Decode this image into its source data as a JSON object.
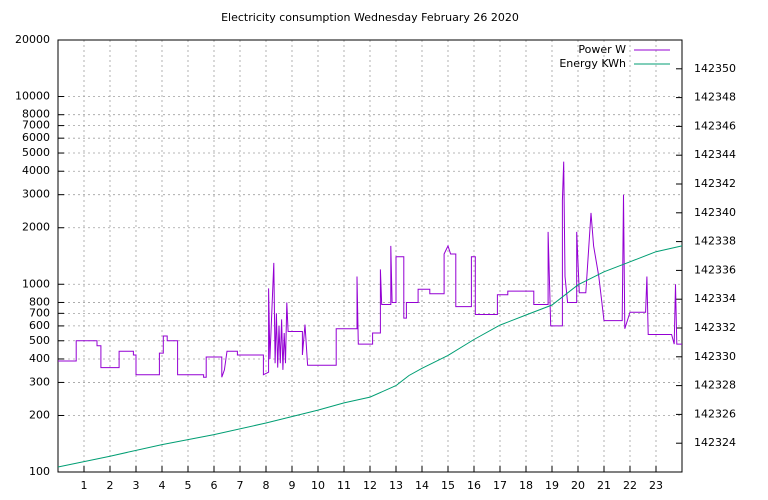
{
  "chart_data": {
    "type": "line",
    "title": "Electricity consumption Wednesday February 26 2020",
    "xlim": [
      0,
      24
    ],
    "xticks": [
      1,
      2,
      3,
      4,
      5,
      6,
      7,
      8,
      9,
      10,
      11,
      12,
      13,
      14,
      15,
      16,
      17,
      18,
      19,
      20,
      21,
      22,
      23
    ],
    "ylim": [
      100,
      20000
    ],
    "yscale": "log",
    "yticks": [
      100,
      200,
      300,
      400,
      500,
      600,
      700,
      800,
      1000,
      2000,
      3000,
      4000,
      5000,
      6000,
      7000,
      8000,
      10000,
      20000
    ],
    "y2lim": [
      142322,
      142352
    ],
    "y2ticks": [
      142324,
      142326,
      142328,
      142330,
      142332,
      142334,
      142336,
      142338,
      142340,
      142342,
      142344,
      142346,
      142348,
      142350
    ],
    "grid": true,
    "legend": "top-right",
    "series": [
      {
        "name": "Power W",
        "color": "#9400d3",
        "x": [
          0,
          0.7,
          0.7,
          1.5,
          1.5,
          1.65,
          1.65,
          2.35,
          2.35,
          2.9,
          2.9,
          3.0,
          3.0,
          3.9,
          3.9,
          4.05,
          4.05,
          4.2,
          4.2,
          4.6,
          4.6,
          5.6,
          5.6,
          5.7,
          5.7,
          6.3,
          6.3,
          6.4,
          6.5,
          6.9,
          6.9,
          7.9,
          7.9,
          8.1,
          8.1,
          8.15,
          8.3,
          8.35,
          8.4,
          8.45,
          8.5,
          8.55,
          8.6,
          8.65,
          8.7,
          8.75,
          8.8,
          8.85,
          9.4,
          9.4,
          9.5,
          9.6,
          10.7,
          10.7,
          11.5,
          11.5,
          11.55,
          12.1,
          12.1,
          12.4,
          12.4,
          12.45,
          12.8,
          12.8,
          12.85,
          13.0,
          13.0,
          13.3,
          13.3,
          13.4,
          13.4,
          13.85,
          13.85,
          14.3,
          14.3,
          14.85,
          14.85,
          15.0,
          15.1,
          15.3,
          15.3,
          15.9,
          15.9,
          16.05,
          16.05,
          16.9,
          16.9,
          17.3,
          17.3,
          18.3,
          18.3,
          18.85,
          18.85,
          18.95,
          19.4,
          19.4,
          19.45,
          19.5,
          19.6,
          19.95,
          19.95,
          20.05,
          20.3,
          20.5,
          20.6,
          20.8,
          21.0,
          21.7,
          21.75,
          21.8,
          22.0,
          22.6,
          22.65,
          22.7,
          23.6,
          23.7,
          23.75,
          23.8,
          24
        ],
        "values": [
          390,
          390,
          500,
          500,
          470,
          470,
          360,
          360,
          440,
          440,
          420,
          420,
          330,
          330,
          430,
          430,
          530,
          530,
          500,
          500,
          330,
          330,
          320,
          320,
          410,
          410,
          320,
          350,
          440,
          440,
          420,
          420,
          330,
          340,
          950,
          400,
          1300,
          380,
          700,
          360,
          600,
          380,
          650,
          350,
          550,
          380,
          800,
          560,
          560,
          420,
          610,
          370,
          370,
          580,
          580,
          1100,
          480,
          480,
          550,
          550,
          1200,
          780,
          780,
          1600,
          800,
          800,
          1400,
          1400,
          660,
          660,
          800,
          800,
          940,
          940,
          890,
          890,
          1450,
          1600,
          1450,
          1450,
          760,
          760,
          1400,
          1400,
          690,
          690,
          880,
          880,
          920,
          920,
          780,
          780,
          1900,
          600,
          600,
          2800,
          4500,
          1100,
          800,
          800,
          1900,
          900,
          900,
          2400,
          1600,
          1100,
          640,
          640,
          3000,
          580,
          710,
          710,
          1100,
          540,
          540,
          480,
          1000,
          480,
          480
        ]
      },
      {
        "name": "Energy KWh",
        "color": "#009e73",
        "axis": "y2",
        "x": [
          0,
          2,
          4,
          6,
          8,
          10,
          11,
          12,
          13,
          13.5,
          14,
          15,
          16,
          17,
          18,
          19,
          20,
          21,
          22,
          23,
          24
        ],
        "values": [
          142322.35,
          142323.1,
          142323.9,
          142324.6,
          142325.4,
          142326.3,
          142326.8,
          142327.2,
          142328.0,
          142328.7,
          142329.2,
          142330.1,
          142331.2,
          142332.2,
          142332.9,
          142333.6,
          142335.0,
          142335.9,
          142336.6,
          142337.3,
          142337.7
        ]
      }
    ]
  }
}
